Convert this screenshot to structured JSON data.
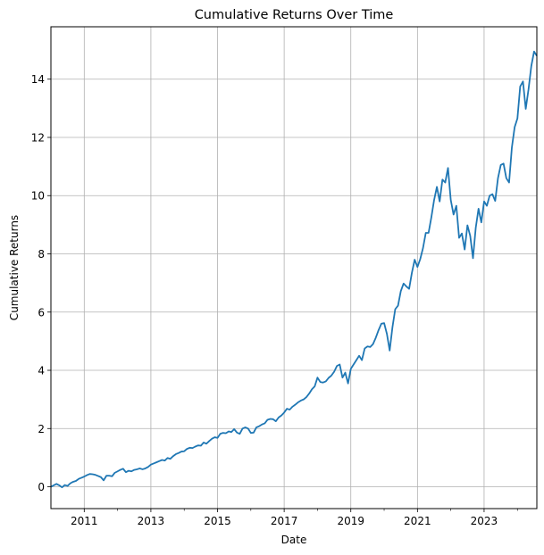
{
  "chart_data": {
    "type": "line",
    "title": "Cumulative Returns Over Time",
    "xlabel": "Date",
    "ylabel": "Cumulative Returns",
    "x_tick_labels": [
      "2011",
      "2013",
      "2015",
      "2017",
      "2019",
      "2021",
      "2023"
    ],
    "y_tick_labels": [
      "0",
      "2",
      "4",
      "6",
      "8",
      "10",
      "12",
      "14"
    ],
    "xlim": [
      "2010-01",
      "2024-08"
    ],
    "ylim": [
      -0.75,
      15.8
    ],
    "grid": true,
    "legend": "none",
    "colors": {
      "line": "#1f77b4",
      "grid": "#b0b0b0",
      "axes": "#000000"
    },
    "series": [
      {
        "x": [
          "2010-01",
          "2010-02",
          "2010-03",
          "2010-04",
          "2010-05",
          "2010-06",
          "2010-07",
          "2010-08",
          "2010-09",
          "2010-10",
          "2010-11",
          "2010-12",
          "2011-01",
          "2011-02",
          "2011-03",
          "2011-04",
          "2011-05",
          "2011-06",
          "2011-07",
          "2011-08",
          "2011-09",
          "2011-10",
          "2011-11",
          "2011-12",
          "2012-01",
          "2012-02",
          "2012-03",
          "2012-04",
          "2012-05",
          "2012-06",
          "2012-07",
          "2012-08",
          "2012-09",
          "2012-10",
          "2012-11",
          "2012-12",
          "2013-01",
          "2013-02",
          "2013-03",
          "2013-04",
          "2013-05",
          "2013-06",
          "2013-07",
          "2013-08",
          "2013-09",
          "2013-10",
          "2013-11",
          "2013-12",
          "2014-01",
          "2014-02",
          "2014-03",
          "2014-04",
          "2014-05",
          "2014-06",
          "2014-07",
          "2014-08",
          "2014-09",
          "2014-10",
          "2014-11",
          "2014-12",
          "2015-01",
          "2015-02",
          "2015-03",
          "2015-04",
          "2015-05",
          "2015-06",
          "2015-07",
          "2015-08",
          "2015-09",
          "2015-10",
          "2015-11",
          "2015-12",
          "2016-01",
          "2016-02",
          "2016-03",
          "2016-04",
          "2016-05",
          "2016-06",
          "2016-07",
          "2016-08",
          "2016-09",
          "2016-10",
          "2016-11",
          "2016-12",
          "2017-01",
          "2017-02",
          "2017-03",
          "2017-04",
          "2017-05",
          "2017-06",
          "2017-07",
          "2017-08",
          "2017-09",
          "2017-10",
          "2017-11",
          "2017-12",
          "2018-01",
          "2018-02",
          "2018-03",
          "2018-04",
          "2018-05",
          "2018-06",
          "2018-07",
          "2018-08",
          "2018-09",
          "2018-10",
          "2018-11",
          "2018-12",
          "2019-01",
          "2019-02",
          "2019-03",
          "2019-04",
          "2019-05",
          "2019-06",
          "2019-07",
          "2019-08",
          "2019-09",
          "2019-10",
          "2019-11",
          "2019-12",
          "2020-01",
          "2020-02",
          "2020-03",
          "2020-04",
          "2020-05",
          "2020-06",
          "2020-07",
          "2020-08",
          "2020-09",
          "2020-10",
          "2020-11",
          "2020-12",
          "2021-01",
          "2021-02",
          "2021-03",
          "2021-04",
          "2021-05",
          "2021-06",
          "2021-07",
          "2021-08",
          "2021-09",
          "2021-10",
          "2021-11",
          "2021-12",
          "2022-01",
          "2022-02",
          "2022-03",
          "2022-04",
          "2022-05",
          "2022-06",
          "2022-07",
          "2022-08",
          "2022-09",
          "2022-10",
          "2022-11",
          "2022-12",
          "2023-01",
          "2023-02",
          "2023-03",
          "2023-04",
          "2023-05",
          "2023-06",
          "2023-07",
          "2023-08",
          "2023-09",
          "2023-10",
          "2023-11",
          "2023-12",
          "2024-01",
          "2024-02",
          "2024-03",
          "2024-04",
          "2024-05",
          "2024-06",
          "2024-07",
          "2024-08"
        ],
        "y": [
          0.0,
          0.05,
          0.1,
          0.05,
          -0.02,
          0.06,
          0.03,
          0.12,
          0.17,
          0.2,
          0.27,
          0.31,
          0.35,
          0.4,
          0.44,
          0.43,
          0.41,
          0.37,
          0.33,
          0.22,
          0.38,
          0.38,
          0.36,
          0.48,
          0.53,
          0.58,
          0.62,
          0.5,
          0.55,
          0.53,
          0.58,
          0.6,
          0.63,
          0.6,
          0.63,
          0.68,
          0.76,
          0.8,
          0.84,
          0.88,
          0.92,
          0.9,
          0.99,
          0.96,
          1.05,
          1.12,
          1.16,
          1.21,
          1.22,
          1.3,
          1.34,
          1.33,
          1.38,
          1.42,
          1.41,
          1.52,
          1.48,
          1.57,
          1.65,
          1.7,
          1.68,
          1.82,
          1.85,
          1.84,
          1.9,
          1.88,
          1.98,
          1.86,
          1.82,
          2.0,
          2.04,
          2.0,
          1.85,
          1.86,
          2.04,
          2.08,
          2.14,
          2.18,
          2.3,
          2.33,
          2.32,
          2.25,
          2.38,
          2.45,
          2.55,
          2.68,
          2.65,
          2.75,
          2.82,
          2.9,
          2.96,
          3.0,
          3.08,
          3.2,
          3.35,
          3.45,
          3.75,
          3.6,
          3.58,
          3.62,
          3.74,
          3.82,
          3.95,
          4.15,
          4.2,
          3.75,
          3.92,
          3.55,
          4.05,
          4.2,
          4.35,
          4.5,
          4.35,
          4.75,
          4.82,
          4.8,
          4.9,
          5.12,
          5.38,
          5.6,
          5.62,
          5.25,
          4.68,
          5.48,
          6.1,
          6.22,
          6.72,
          6.98,
          6.88,
          6.8,
          7.35,
          7.8,
          7.55,
          7.82,
          8.2,
          8.72,
          8.72,
          9.25,
          9.85,
          10.3,
          9.8,
          10.55,
          10.45,
          10.95,
          9.85,
          9.35,
          9.65,
          8.55,
          8.7,
          8.15,
          8.98,
          8.62,
          7.85,
          8.9,
          9.55,
          9.08,
          9.8,
          9.65,
          10.0,
          10.05,
          9.82,
          10.6,
          11.05,
          11.1,
          10.6,
          10.45,
          11.65,
          12.35,
          12.65,
          13.75,
          13.92,
          12.98,
          13.65,
          14.45,
          14.95,
          14.8
        ]
      }
    ]
  }
}
